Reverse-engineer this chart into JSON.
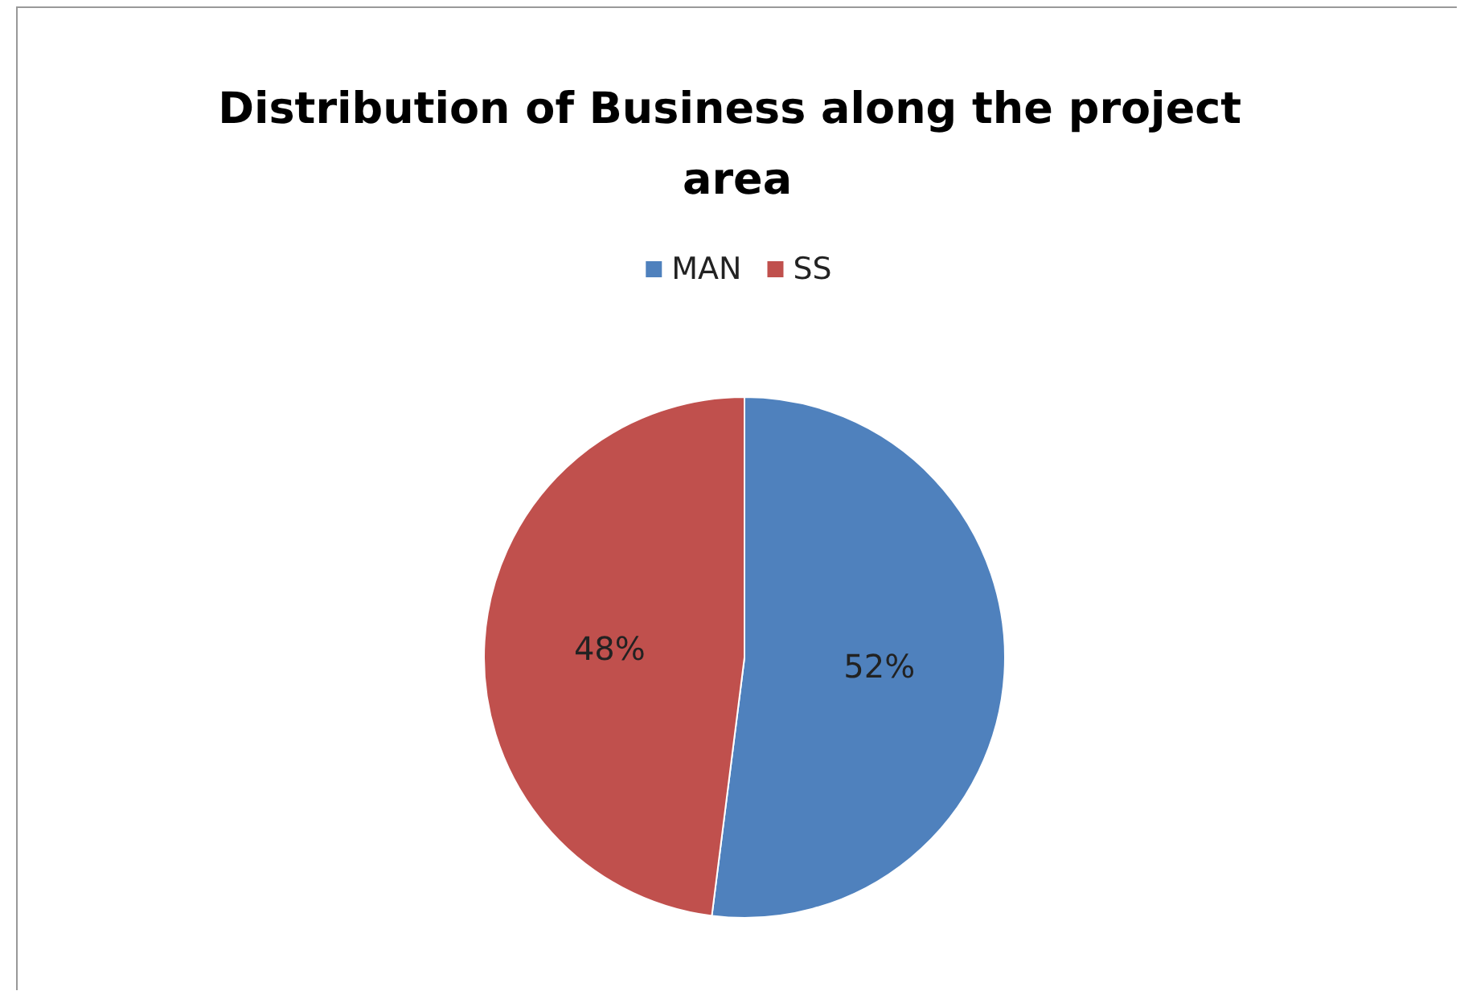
{
  "chart_data": {
    "type": "pie",
    "title": "Distribution of Business along the project area",
    "categories": [
      "MAN",
      "SS"
    ],
    "values": [
      52,
      48
    ],
    "colors": [
      "#4f81bd",
      "#c0504d"
    ],
    "value_labels": [
      "52%",
      "48%"
    ],
    "legend": "top"
  }
}
